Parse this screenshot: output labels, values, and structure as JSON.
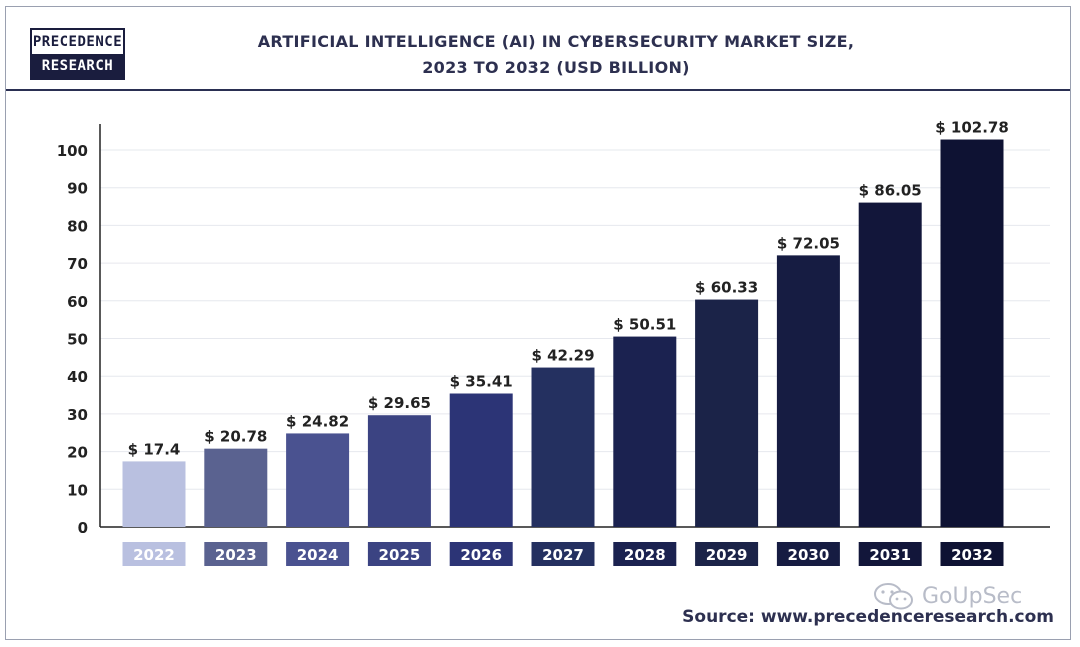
{
  "logo": {
    "line1": "PRECEDENCE",
    "line2": "RESEARCH"
  },
  "watermark": "GoUpSec",
  "source": "Source: www.precedenceresearch.com",
  "colors": {
    "frame": "#9aa0b0",
    "header_rule": "#2a2f52",
    "title": "#2d3050",
    "gridline": "#e6e8ee",
    "axis": "#222222"
  },
  "chart_data": {
    "type": "bar",
    "title": [
      "ARTIFICIAL INTELLIGENCE (AI) IN CYBERSECURITY MARKET  SIZE,",
      "2023 TO 2032 (USD BILLION)"
    ],
    "xlabel": "",
    "ylabel": "",
    "ylim": [
      0,
      100
    ],
    "yticks": [
      0,
      10,
      20,
      30,
      40,
      50,
      60,
      70,
      80,
      90,
      100
    ],
    "grid": true,
    "categories": [
      "2022",
      "2023",
      "2024",
      "2025",
      "2026",
      "2027",
      "2028",
      "2029",
      "2030",
      "2031",
      "2032"
    ],
    "values": [
      17.4,
      20.78,
      24.82,
      29.65,
      35.41,
      42.29,
      50.51,
      60.33,
      72.05,
      86.05,
      102.78
    ],
    "value_labels": [
      "$ 17.4",
      "$ 20.78",
      "$ 24.82",
      "$ 29.65",
      "$ 35.41",
      "$ 42.29",
      "$ 50.51",
      "$ 60.33",
      "$ 72.05",
      "$ 86.05",
      "$ 102.78"
    ],
    "bar_colors": [
      "#b9c0e0",
      "#5a6290",
      "#4a5290",
      "#3b4382",
      "#2c3476",
      "#243060",
      "#1b2250",
      "#1b2348",
      "#161c42",
      "#12163a",
      "#0e1233"
    ]
  }
}
